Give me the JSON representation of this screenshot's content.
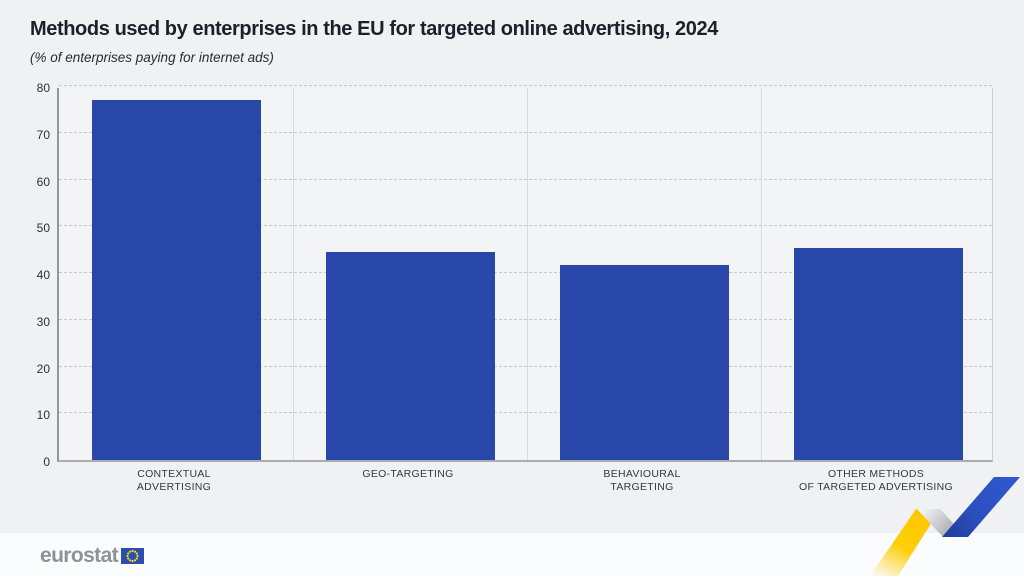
{
  "chart_data": {
    "type": "bar",
    "title": "Methods used by enterprises in the EU for targeted online advertising, 2024",
    "subtitle": "(% of enterprises paying for internet ads)",
    "categories": [
      "CONTEXTUAL\nADVERTISING",
      "GEO-TARGETING",
      "BEHAVIOURAL\nTARGETING",
      "OTHER METHODS\nOF TARGETED ADVERTISING"
    ],
    "values": [
      77,
      44.4,
      41.7,
      45.3
    ],
    "xlabel": "",
    "ylabel": "",
    "ylim": [
      0,
      80
    ],
    "yticks": [
      0,
      10,
      20,
      30,
      40,
      50,
      60,
      70,
      80
    ],
    "grid": "horizontal dashed gridlines, vertical solid category separators",
    "legend": "none",
    "bar_color": "#2947a8"
  },
  "footer": {
    "logo_text": "eurostat",
    "flag_icon": "eu-flag-icon"
  },
  "colors": {
    "background": "#eff1f2",
    "plot_background": "#f3f4f6",
    "footer_background": "#fbfcfd",
    "title_text": "#1b212b",
    "bar_blue": "#2947a8",
    "ribbon_yellow": "#ffcf06",
    "ribbon_blue": "#2d52c4",
    "ribbon_gray": "#aaacb1",
    "logo_gray": "#8d9297",
    "flag_blue": "#2c4fae",
    "flag_star_yellow": "#ffd617"
  }
}
